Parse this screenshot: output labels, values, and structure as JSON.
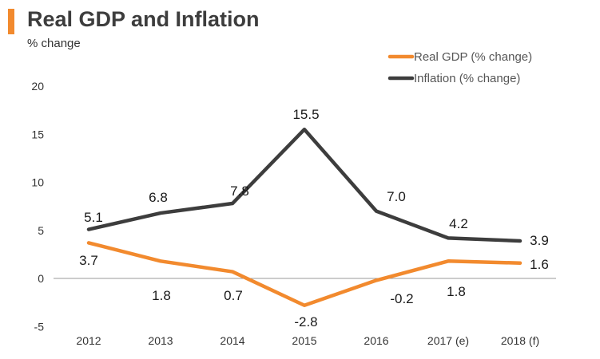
{
  "header": {
    "title": "Real GDP and Inflation",
    "subtitle": "% change"
  },
  "chart_data": {
    "type": "line",
    "title": "Real GDP and Inflation",
    "ylabel": "% change",
    "xlabel": "",
    "categories": [
      "2012",
      "2013",
      "2014",
      "2015",
      "2016",
      "2017 (e)",
      "2018 (f)"
    ],
    "ylim": [
      -5,
      20
    ],
    "yticks": [
      "20",
      "15",
      "10",
      "5",
      "0",
      "-5"
    ],
    "grid": false,
    "legend_position": "top-right",
    "series": [
      {
        "name": "Real GDP (% change)",
        "color": "#f28a2e",
        "values": [
          3.7,
          1.8,
          0.7,
          -2.8,
          -0.2,
          1.8,
          1.6
        ],
        "labels": [
          "3.7",
          "1.8",
          "0.7",
          "-2.8",
          "-0.2",
          "1.8",
          "1.6"
        ]
      },
      {
        "name": "Inflation (% change)",
        "color": "#3d3d3d",
        "values": [
          5.1,
          6.8,
          7.8,
          15.5,
          7.0,
          4.2,
          3.9
        ],
        "labels": [
          "5.1",
          "6.8",
          "7.8",
          "15.5",
          "7.0",
          "4.2",
          "3.9"
        ]
      }
    ]
  }
}
